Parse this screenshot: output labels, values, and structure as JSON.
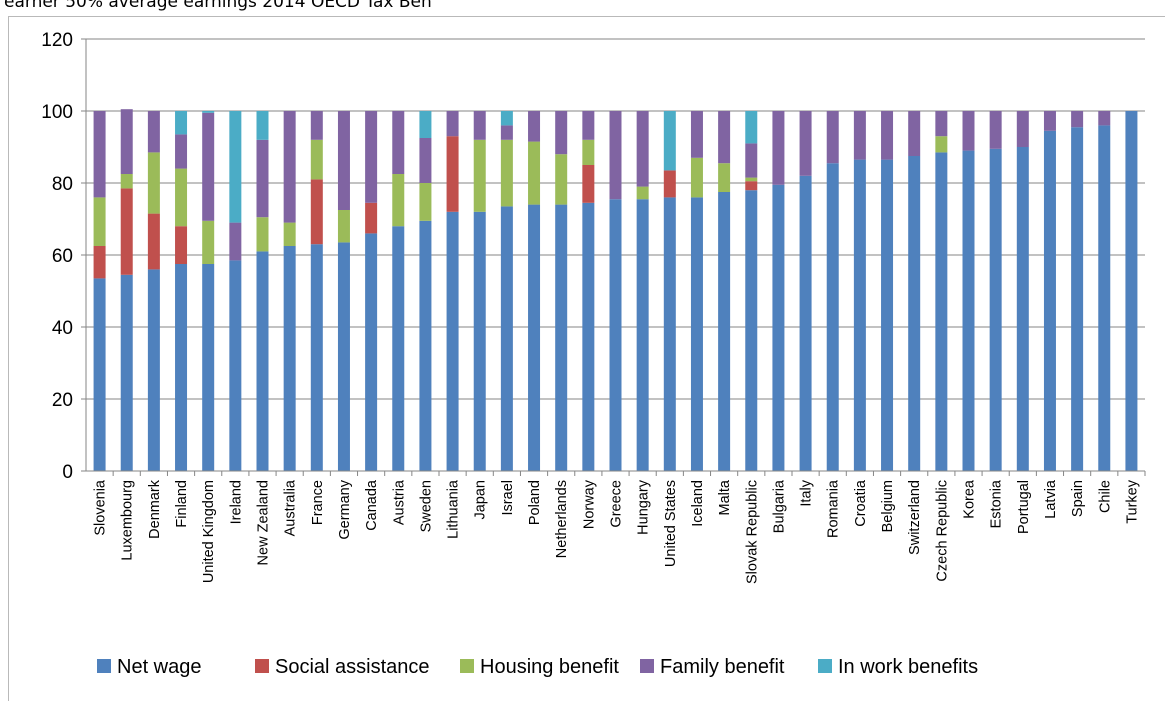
{
  "title": "earner 50% average earnings 2014 OECD Tax Ben",
  "chart_data": {
    "type": "bar",
    "stacked": true,
    "ylim": [
      0,
      120
    ],
    "yticks": [
      0,
      20,
      40,
      60,
      80,
      100,
      120
    ],
    "grid": true,
    "legend_position": "bottom",
    "categories": [
      "Slovenia",
      "Luxembourg",
      "Denmark",
      "Finland",
      "United Kingdom",
      "Ireland",
      "New Zealand",
      "Australia",
      "France",
      "Germany",
      "Canada",
      "Austria",
      "Sweden",
      "Lithuania",
      "Japan",
      "Israel",
      "Poland",
      "Netherlands",
      "Norway",
      "Greece",
      "Hungary",
      "United States",
      "Iceland",
      "Malta",
      "Slovak Republic",
      "Bulgaria",
      "Italy",
      "Romania",
      "Croatia",
      "Belgium",
      "Switzerland",
      "Czech Republic",
      "Korea",
      "Estonia",
      "Portugal",
      "Latvia",
      "Spain",
      "Chile",
      "Turkey"
    ],
    "series": [
      {
        "name": "Net wage",
        "color": "#4f81bd",
        "values": [
          53.5,
          54.5,
          56,
          57.5,
          57.5,
          58.5,
          61,
          62.5,
          63,
          63.5,
          66,
          68,
          69.5,
          72,
          72,
          73.5,
          74,
          74,
          74.5,
          75.5,
          75.5,
          76,
          76,
          77.5,
          78,
          79.5,
          82,
          85.5,
          86.5,
          86.5,
          87.5,
          88.5,
          89,
          89.5,
          90,
          94.5,
          95.5,
          96,
          100
        ]
      },
      {
        "name": "Social assistance",
        "color": "#c0504d",
        "values": [
          9,
          24,
          15.5,
          10.5,
          0,
          0,
          0,
          0,
          18,
          0,
          8.5,
          0,
          0,
          21,
          0,
          0,
          0,
          0,
          10.5,
          0,
          0,
          7.5,
          0,
          0,
          2.5,
          0,
          0,
          0,
          0,
          0,
          0,
          0,
          0,
          0,
          0,
          0,
          0,
          0,
          0
        ]
      },
      {
        "name": "Housing benefit",
        "color": "#9bbb59",
        "values": [
          13.5,
          4,
          17,
          16,
          12,
          0,
          9.5,
          6.5,
          11,
          9,
          0,
          14.5,
          10.5,
          0,
          20,
          18.5,
          17.5,
          14,
          7,
          0,
          3.5,
          0,
          11,
          8,
          1,
          0,
          0,
          0,
          0,
          0,
          0,
          4.5,
          0,
          0,
          0,
          0,
          0,
          0,
          0
        ]
      },
      {
        "name": "Family benefit",
        "color": "#8064a2",
        "values": [
          24,
          18,
          11.5,
          9.5,
          30,
          10.5,
          21.5,
          31,
          8,
          27.5,
          25.5,
          17.5,
          12.5,
          7,
          8,
          4,
          8.5,
          12,
          8,
          24.5,
          21,
          0,
          13,
          14.5,
          9.5,
          20.5,
          18,
          14.5,
          13.5,
          13.5,
          12.5,
          7,
          11,
          10.5,
          10,
          5.5,
          4.5,
          4,
          0
        ]
      },
      {
        "name": "In work benefits",
        "color": "#4bacc6",
        "values": [
          0,
          0,
          0,
          6.5,
          0.5,
          31,
          8,
          0,
          0,
          0,
          0,
          0,
          7.5,
          0,
          0,
          4,
          0,
          0,
          0,
          0,
          0,
          16.5,
          0,
          0,
          9,
          0,
          0,
          0,
          0,
          0,
          0,
          0,
          0,
          0,
          0,
          0,
          0,
          0,
          0
        ]
      }
    ]
  }
}
